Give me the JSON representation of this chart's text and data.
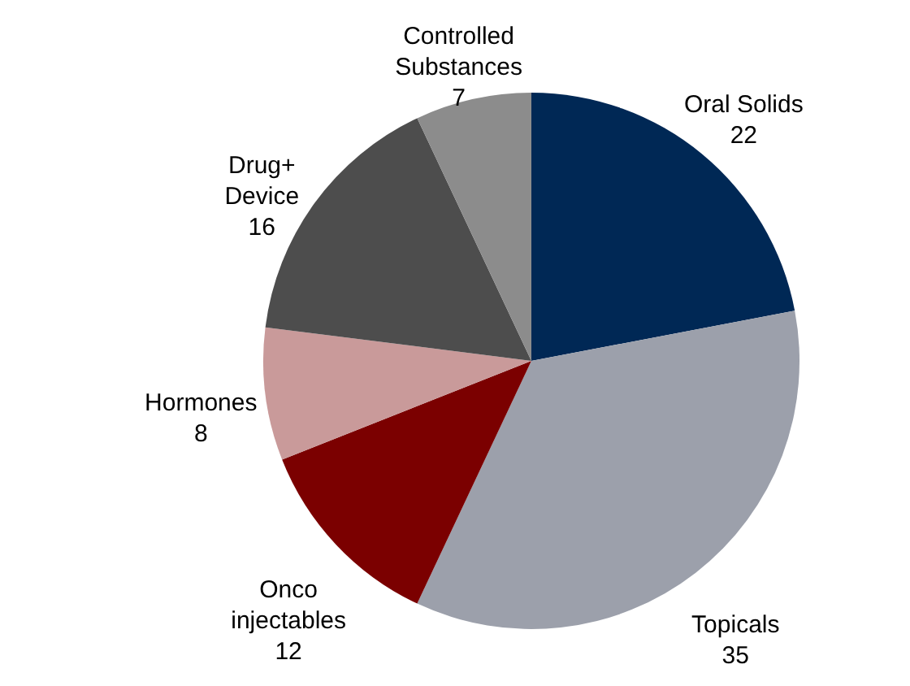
{
  "chart_data": {
    "type": "pie",
    "categories": [
      "Oral Solids",
      "Topicals",
      "Onco injectables",
      "Hormones",
      "Drug+ Device",
      "Controlled Substances"
    ],
    "values": [
      22,
      35,
      12,
      8,
      16,
      7
    ],
    "colors": [
      "#002855",
      "#9ca0ab",
      "#7b0000",
      "#c99a9a",
      "#4d4d4d",
      "#8c8c8c"
    ],
    "data_labels": true
  }
}
